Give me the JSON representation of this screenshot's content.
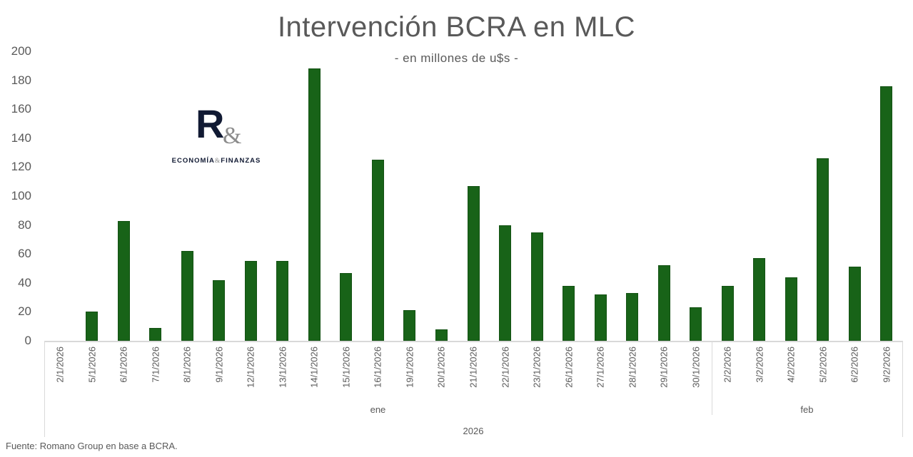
{
  "chart_data": {
    "type": "bar",
    "title": "Intervención BCRA en MLC",
    "subtitle": "- en millones de u$s -",
    "xlabel": "",
    "ylabel": "",
    "ylim": [
      0,
      200
    ],
    "yticks": [
      0,
      20,
      40,
      60,
      80,
      100,
      120,
      140,
      160,
      180,
      200
    ],
    "grid": false,
    "legend": null,
    "bar_color": "#186318",
    "categories": [
      "2/1/2026",
      "5/1/2026",
      "6/1/2026",
      "7/1/2026",
      "8/1/2026",
      "9/1/2026",
      "12/1/2026",
      "13/1/2026",
      "14/1/2026",
      "15/1/2026",
      "16/1/2026",
      "19/1/2026",
      "20/1/2026",
      "21/1/2026",
      "22/1/2026",
      "23/1/2026",
      "26/1/2026",
      "27/1/2026",
      "28/1/2026",
      "29/1/2026",
      "30/1/2026",
      "2/2/2026",
      "3/2/2026",
      "4/2/2026",
      "5/2/2026",
      "6/2/2026",
      "9/2/2026"
    ],
    "values": [
      0,
      20,
      83,
      9,
      62,
      42,
      55,
      55,
      188,
      47,
      125,
      21,
      8,
      107,
      80,
      75,
      38,
      32,
      33,
      52,
      23,
      38,
      57,
      44,
      126,
      51,
      176
    ],
    "month_groups": [
      {
        "label": "ene",
        "start": 0,
        "end": 20
      },
      {
        "label": "feb",
        "start": 21,
        "end": 26
      }
    ],
    "year_groups": [
      {
        "label": "2026",
        "start": 0,
        "end": 26
      }
    ]
  },
  "logo": {
    "mark": "R",
    "ampersand": "&",
    "text_left": "ECONOMÍA",
    "text_sep": "&",
    "text_right": "FINANZAS"
  },
  "footer": {
    "source": "Fuente: Romano Group en base a BCRA."
  }
}
